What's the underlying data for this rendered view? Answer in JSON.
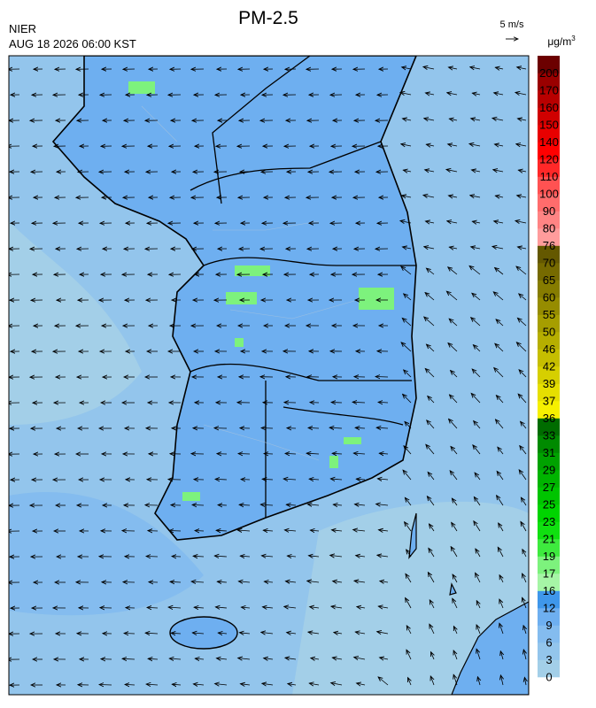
{
  "header": {
    "title": "PM-2.5",
    "source": "NIER",
    "timestamp": "AUG 18 2026 06:00 KST"
  },
  "wind_scale": {
    "label": "5 m/s"
  },
  "legend": {
    "unit": "μg/m",
    "unit_exponent": "3",
    "levels": [
      0,
      3,
      6,
      9,
      12,
      16,
      17,
      19,
      21,
      23,
      25,
      27,
      29,
      31,
      33,
      36,
      37,
      39,
      42,
      46,
      50,
      55,
      60,
      65,
      70,
      76,
      80,
      90,
      100,
      110,
      120,
      140,
      150,
      160,
      170,
      200
    ],
    "colors": [
      "#a3cfe8",
      "#93c5ec",
      "#84bcef",
      "#6eaff0",
      "#3f97ea",
      "#a6f5a6",
      "#7df27d",
      "#3eea3e",
      "#10e010",
      "#00d400",
      "#00c400",
      "#00b400",
      "#00a200",
      "#008a00",
      "#006c00",
      "#f6f000",
      "#e6df00",
      "#d6cf00",
      "#c6be00",
      "#b6ae00",
      "#a69e00",
      "#968c00",
      "#867c00",
      "#766a00",
      "#645800",
      "#ff9c9c",
      "#ff8484",
      "#ff6c6c",
      "#ff5252",
      "#ff2828",
      "#ff0000",
      "#e80000",
      "#d00000",
      "#b80000",
      "#9a0000",
      "#6c0000"
    ]
  }
}
